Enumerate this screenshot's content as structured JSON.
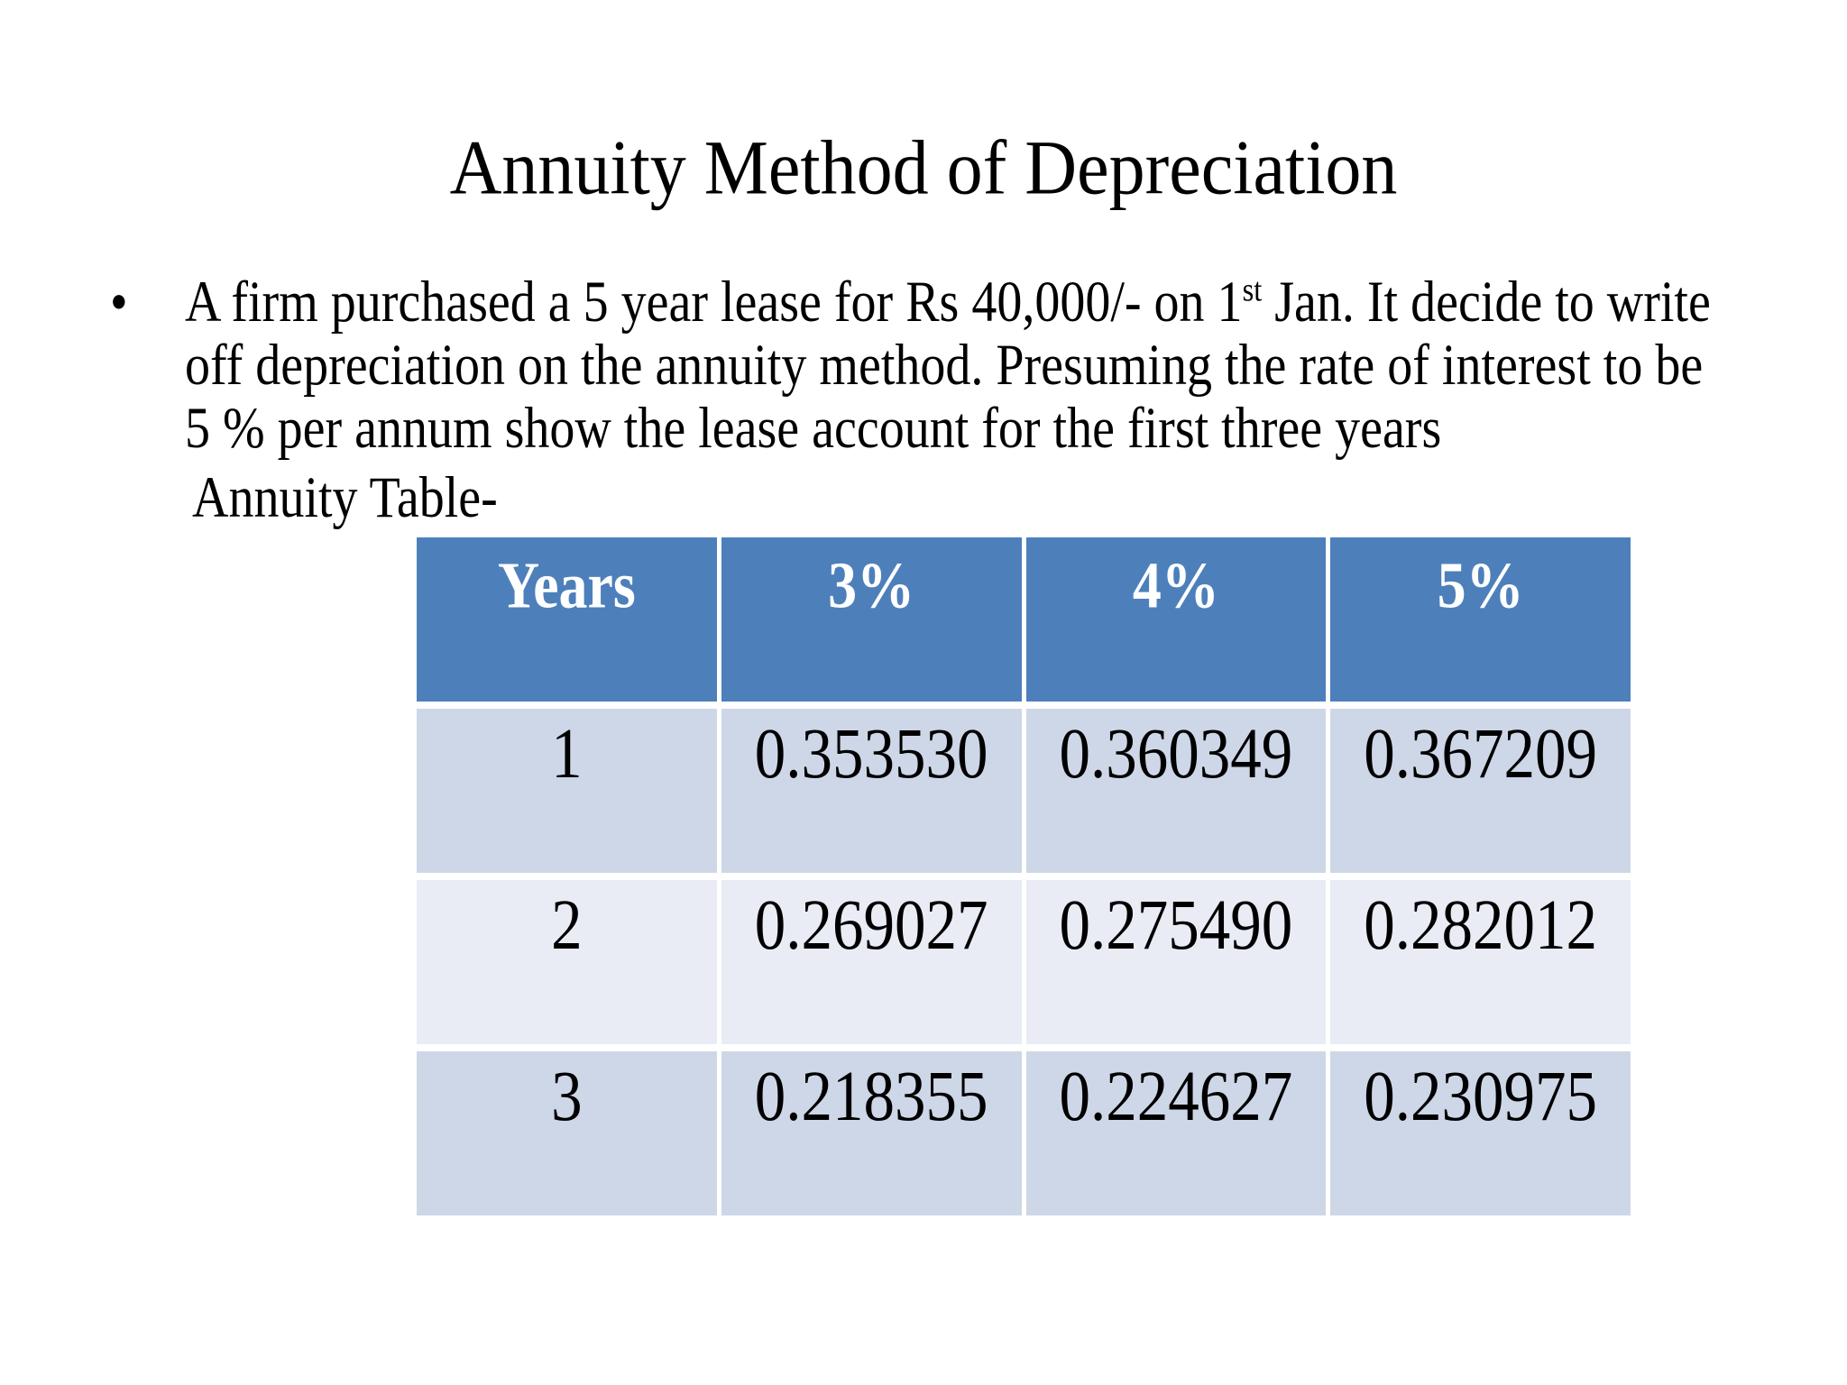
{
  "slide": {
    "title": "Annuity Method of Depreciation",
    "bullet_char": "•",
    "paragraph": {
      "line1_pre": "A firm purchased a 5 year lease for Rs 40,000/- on 1",
      "line1_sup": "st",
      "line1_post": " Jan. It decide to write",
      "line2": "off depreciation on the annuity method. Presuming the rate of interest to be",
      "line3": "5 % per annum show the lease account for the first three years"
    },
    "table_label": "Annuity Table-",
    "table": {
      "headers": [
        "Years",
        "3%",
        "4%",
        "5%"
      ],
      "rows": [
        [
          "1",
          "0.353530",
          "0.360349",
          "0.367209"
        ],
        [
          "2",
          "0.269027",
          "0.275490",
          "0.282012"
        ],
        [
          "3",
          "0.218355",
          "0.224627",
          "0.230975"
        ]
      ]
    },
    "colors": {
      "header_bg": "#4d80bb",
      "header_text": "#ffffff",
      "row_odd_bg": "#ced7e7",
      "row_even_bg": "#e9ecf4",
      "body_text": "#000000",
      "background": "#ffffff"
    }
  }
}
